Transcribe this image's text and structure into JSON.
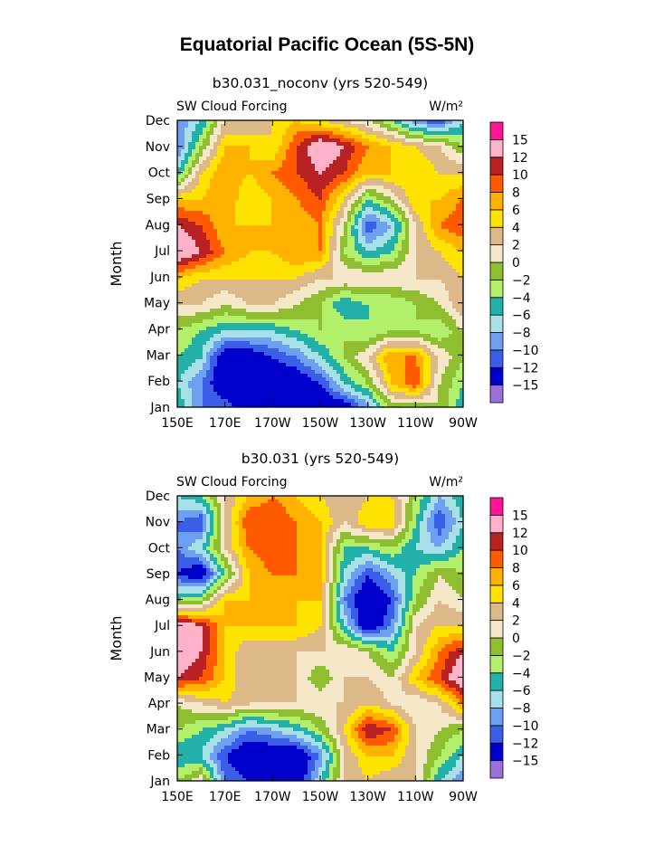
{
  "page": {
    "title": "Equatorial Pacific Ocean (5S-5N)"
  },
  "colors": {
    "levels": [
      "#9b6fdd",
      "#0000cc",
      "#3a5ee8",
      "#6f9ff0",
      "#a8e0e8",
      "#22b0a8",
      "#b2ef6b",
      "#8fbf30",
      "#f5e8c8",
      "#ddb98a",
      "#ffe300",
      "#ffb200",
      "#ff5a00",
      "#b82222",
      "#ffb2c8",
      "#ff1493"
    ]
  },
  "chart_data": [
    {
      "type": "heatmap",
      "subtitle": "b30.031_noconv (yrs 520-549)",
      "left_string": "SW Cloud Forcing",
      "units": "W/m²",
      "ylabel": "Month",
      "xlabel": "",
      "x_ticks": [
        "150E",
        "170E",
        "170W",
        "150W",
        "130W",
        "110W",
        "90W"
      ],
      "y_ticks": [
        "Jan",
        "Feb",
        "Mar",
        "Apr",
        "May",
        "Jun",
        "Jul",
        "Aug",
        "Sep",
        "Oct",
        "Nov",
        "Dec"
      ],
      "legend_labels": [
        "15",
        "12",
        "10",
        "8",
        "6",
        "4",
        "2",
        "0",
        "-2",
        "-4",
        "-6",
        "-8",
        "-10",
        "-12",
        "-15"
      ],
      "lon": [
        150,
        160,
        170,
        180,
        190,
        200,
        210,
        220,
        230,
        240,
        250,
        260,
        270
      ],
      "months": [
        "Jan",
        "Feb",
        "Mar",
        "Apr",
        "May",
        "Jun",
        "Jul",
        "Aug",
        "Sep",
        "Oct",
        "Nov",
        "Dec"
      ],
      "values": [
        [
          -4,
          -10,
          -10,
          -15,
          -15,
          -12,
          -15,
          -15,
          -10,
          -2,
          -4,
          0,
          -6
        ],
        [
          -6,
          -10,
          -15,
          -15,
          -15,
          -15,
          -12,
          -6,
          -2,
          6,
          10,
          0,
          -4
        ],
        [
          -4,
          -6,
          -15,
          -15,
          -12,
          -10,
          -6,
          -2,
          2,
          8,
          8,
          2,
          -2
        ],
        [
          -2,
          -4,
          -6,
          -6,
          -6,
          -4,
          -2,
          -2,
          -4,
          -2,
          -2,
          -4,
          0
        ],
        [
          2,
          2,
          0,
          2,
          2,
          0,
          -2,
          -6,
          -4,
          -4,
          -2,
          0,
          4
        ],
        [
          6,
          4,
          4,
          4,
          4,
          4,
          2,
          2,
          2,
          2,
          2,
          2,
          4
        ],
        [
          15,
          12,
          8,
          6,
          6,
          8,
          8,
          -2,
          -6,
          -4,
          2,
          4,
          6
        ],
        [
          12,
          10,
          6,
          6,
          6,
          6,
          8,
          0,
          -12,
          -8,
          2,
          8,
          10
        ],
        [
          6,
          6,
          8,
          4,
          6,
          8,
          10,
          4,
          -4,
          0,
          6,
          6,
          8
        ],
        [
          -6,
          4,
          8,
          6,
          8,
          10,
          12,
          10,
          6,
          6,
          6,
          4,
          4
        ],
        [
          -10,
          -2,
          6,
          6,
          4,
          10,
          15,
          12,
          8,
          6,
          4,
          2,
          -2
        ],
        [
          -10,
          -6,
          2,
          2,
          4,
          6,
          4,
          2,
          0,
          -4,
          -10,
          -12,
          -6
        ]
      ]
    },
    {
      "type": "heatmap",
      "subtitle": "b30.031 (yrs 520-549)",
      "left_string": "SW Cloud Forcing",
      "units": "W/m²",
      "ylabel": "Month",
      "xlabel": "",
      "x_ticks": [
        "150E",
        "170E",
        "170W",
        "150W",
        "130W",
        "110W",
        "90W"
      ],
      "y_ticks": [
        "Jan",
        "Feb",
        "Mar",
        "Apr",
        "May",
        "Jun",
        "Jul",
        "Aug",
        "Sep",
        "Oct",
        "Nov",
        "Dec"
      ],
      "legend_labels": [
        "15",
        "12",
        "10",
        "8",
        "6",
        "4",
        "2",
        "0",
        "-2",
        "-4",
        "-6",
        "-8",
        "-10",
        "-12",
        "-15"
      ],
      "lon": [
        150,
        160,
        170,
        180,
        190,
        200,
        210,
        220,
        230,
        240,
        250,
        260,
        270
      ],
      "months": [
        "Jan",
        "Feb",
        "Mar",
        "Apr",
        "May",
        "Jun",
        "Jul",
        "Aug",
        "Sep",
        "Oct",
        "Nov",
        "Dec"
      ],
      "values": [
        [
          -2,
          2,
          -10,
          -12,
          -15,
          -15,
          -6,
          2,
          4,
          2,
          2,
          -6,
          -10
        ],
        [
          -6,
          -6,
          -12,
          -15,
          -15,
          -15,
          -10,
          2,
          6,
          6,
          2,
          -2,
          -6
        ],
        [
          -2,
          -4,
          -6,
          -10,
          -8,
          -6,
          -2,
          4,
          12,
          10,
          2,
          0,
          -2
        ],
        [
          0,
          2,
          4,
          2,
          2,
          2,
          2,
          2,
          4,
          2,
          0,
          2,
          8
        ],
        [
          12,
          10,
          6,
          2,
          2,
          2,
          -2,
          2,
          2,
          0,
          6,
          10,
          15
        ],
        [
          15,
          12,
          6,
          2,
          2,
          2,
          2,
          2,
          0,
          -4,
          2,
          8,
          12
        ],
        [
          15,
          12,
          6,
          6,
          6,
          6,
          4,
          -6,
          -15,
          -10,
          2,
          4,
          4
        ],
        [
          -4,
          -2,
          6,
          6,
          6,
          6,
          6,
          -10,
          -15,
          -12,
          -2,
          2,
          0
        ],
        [
          -12,
          -15,
          -4,
          6,
          8,
          8,
          6,
          -6,
          -12,
          -8,
          -4,
          0,
          -2
        ],
        [
          -10,
          -6,
          2,
          8,
          10,
          8,
          6,
          -4,
          -4,
          -2,
          -6,
          -8,
          -4
        ],
        [
          -10,
          -12,
          2,
          10,
          10,
          8,
          6,
          2,
          6,
          6,
          -4,
          -12,
          -6
        ],
        [
          -6,
          -4,
          2,
          6,
          8,
          6,
          4,
          2,
          4,
          4,
          -2,
          -8,
          -4
        ]
      ]
    }
  ]
}
